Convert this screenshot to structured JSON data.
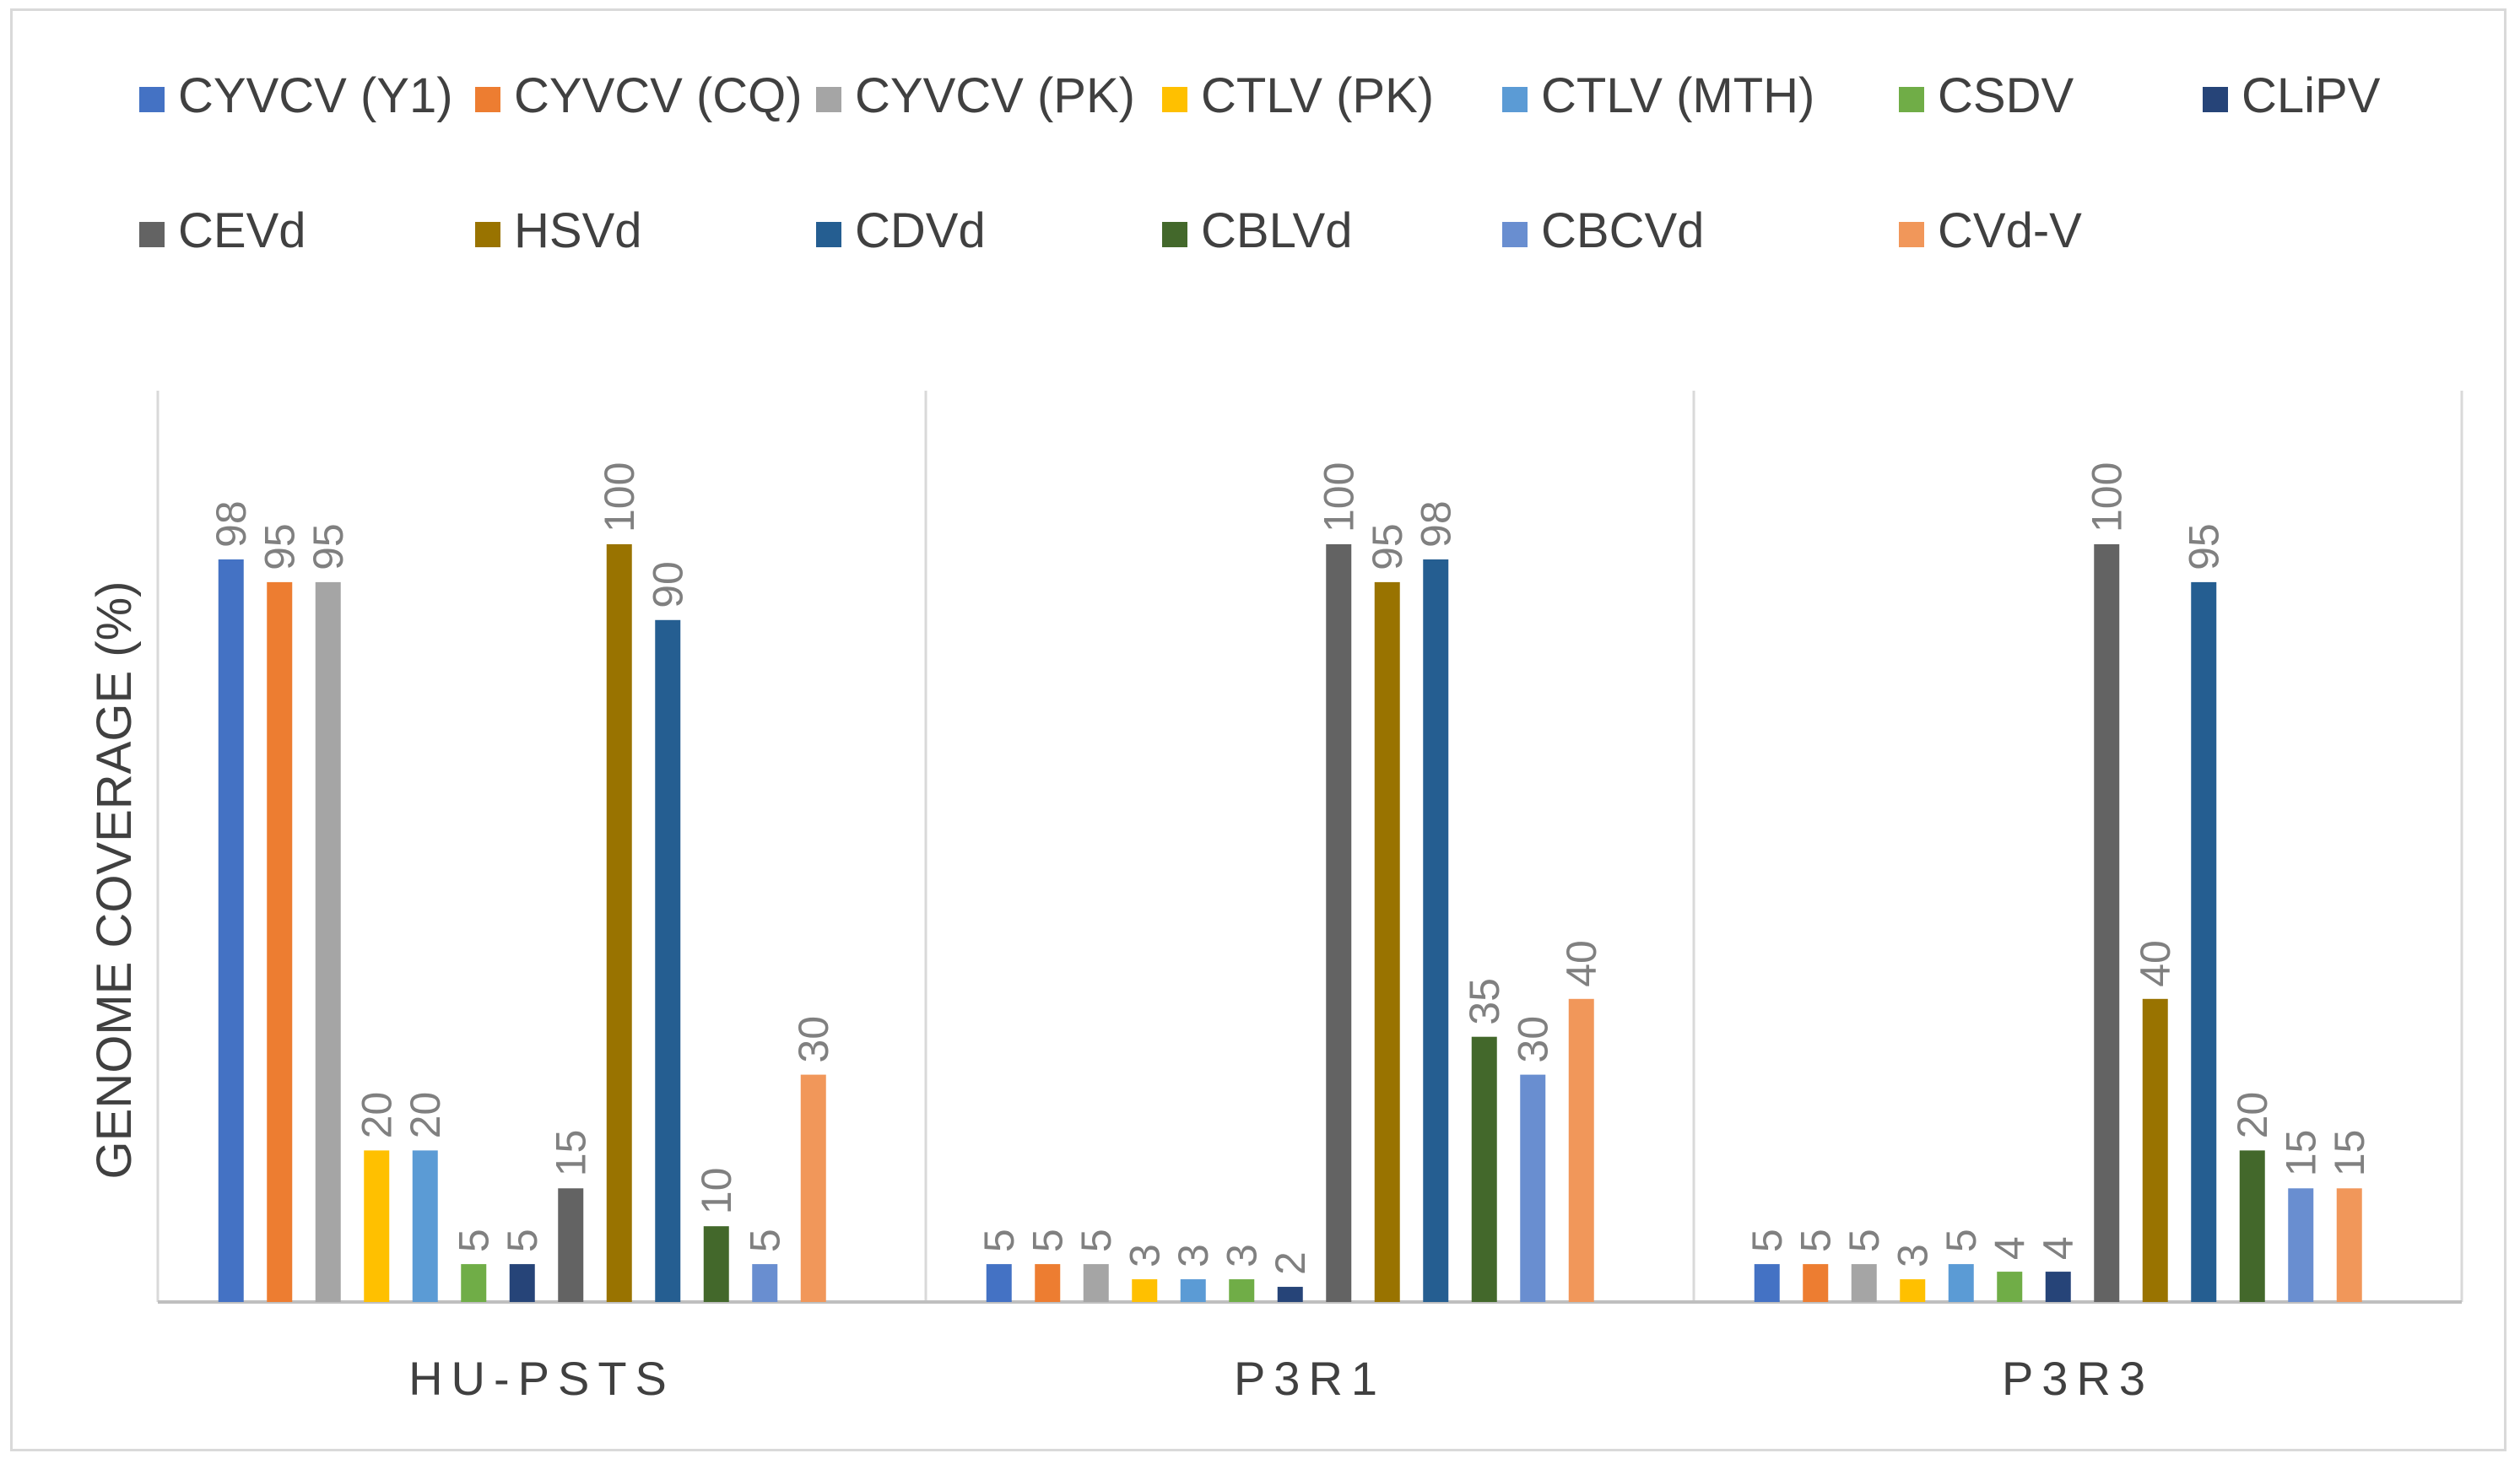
{
  "chart_data": {
    "type": "bar",
    "title": "",
    "xlabel": "",
    "ylabel": "GENOME COVERAGE (%)",
    "ylim": [
      0,
      100
    ],
    "grid": false,
    "legend_position": "top",
    "categories": [
      "HU-PSTS",
      "P3R1",
      "P3R3"
    ],
    "series": [
      {
        "name": "CYVCV (Y1)",
        "color": "#4472C4",
        "values": [
          98,
          5,
          5
        ]
      },
      {
        "name": "CYVCV (CQ)",
        "color": "#ED7D31",
        "values": [
          95,
          5,
          5
        ]
      },
      {
        "name": "CYVCV (PK)",
        "color": "#A5A5A5",
        "values": [
          95,
          5,
          5
        ]
      },
      {
        "name": "CTLV (PK)",
        "color": "#FFC000",
        "values": [
          20,
          3,
          3
        ]
      },
      {
        "name": "CTLV (MTH)",
        "color": "#5B9BD5",
        "values": [
          20,
          3,
          5
        ]
      },
      {
        "name": "CSDV",
        "color": "#70AD47",
        "values": [
          5,
          3,
          4
        ]
      },
      {
        "name": "CLiPV",
        "color": "#264478",
        "values": [
          5,
          2,
          4
        ]
      },
      {
        "name": "CEVd",
        "color": "#636363",
        "values": [
          15,
          100,
          100
        ]
      },
      {
        "name": "HSVd",
        "color": "#997300",
        "values": [
          100,
          95,
          40
        ]
      },
      {
        "name": "CDVd",
        "color": "#255E91",
        "values": [
          90,
          98,
          95
        ]
      },
      {
        "name": "CBLVd",
        "color": "#43682B",
        "values": [
          10,
          35,
          20
        ]
      },
      {
        "name": "CBCVd",
        "color": "#698ED0",
        "values": [
          5,
          30,
          15
        ]
      },
      {
        "name": "CVd-V",
        "color": "#F1975A",
        "values": [
          30,
          40,
          15
        ]
      }
    ],
    "value_labels": [
      [
        "98",
        "5",
        "5"
      ],
      [
        "95",
        "5",
        "5"
      ],
      [
        "95",
        "5",
        "5"
      ],
      [
        "20",
        "3",
        "3"
      ],
      [
        "20",
        "3",
        "5"
      ],
      [
        "5",
        "3",
        "4"
      ],
      [
        "5",
        "2",
        "4"
      ],
      [
        "15",
        "100",
        "100"
      ],
      [
        "100",
        "95",
        "40"
      ],
      [
        "90",
        "98",
        "95"
      ],
      [
        "10",
        "35",
        "20"
      ],
      [
        "5",
        "30",
        "15"
      ],
      [
        "30",
        "40",
        "15"
      ]
    ]
  }
}
